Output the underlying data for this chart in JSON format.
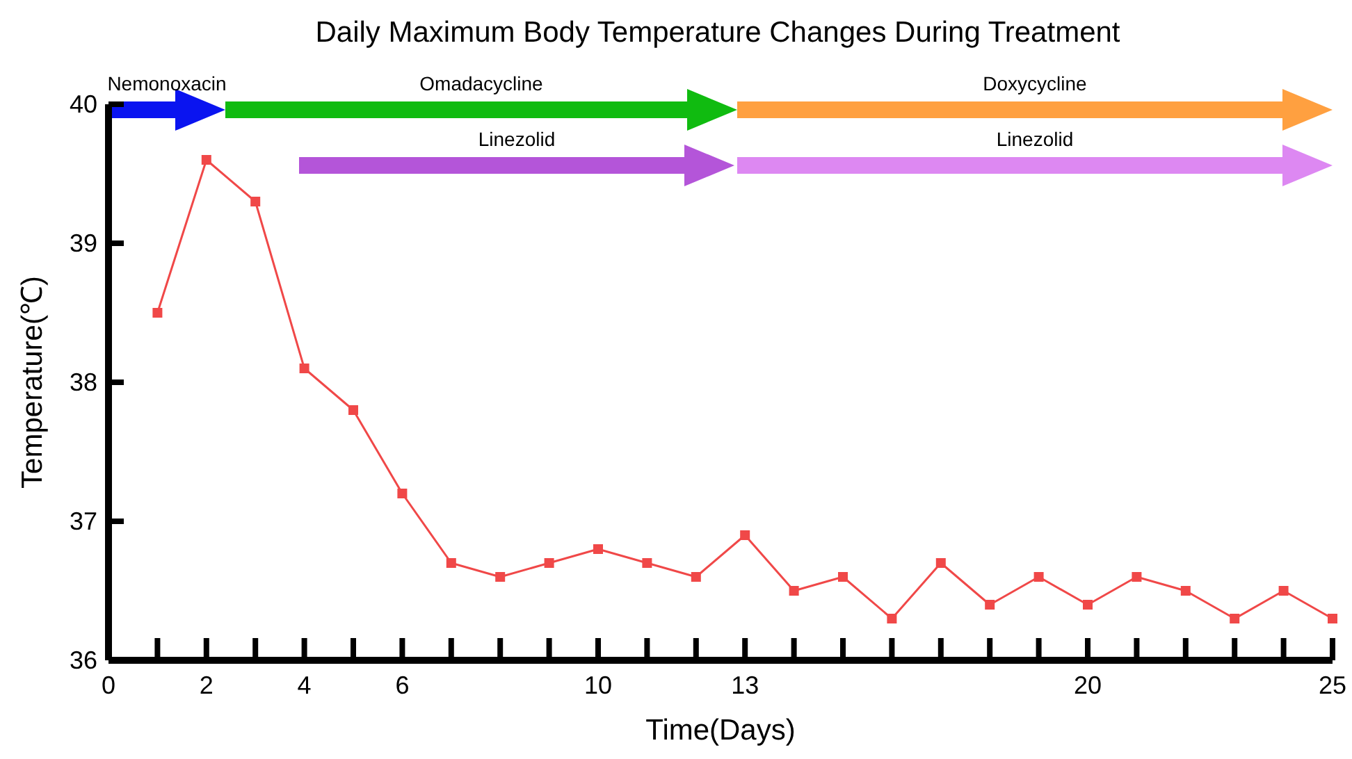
{
  "chart_data": {
    "type": "line",
    "title": "Daily Maximum  Body Temperature Changes During Treatment",
    "xlabel": "Time(Days)",
    "ylabel": "Temperature(℃)",
    "x": [
      1,
      2,
      3,
      4,
      5,
      6,
      7,
      8,
      9,
      10,
      11,
      12,
      13,
      14,
      15,
      16,
      17,
      18,
      19,
      20,
      21,
      22,
      23,
      24,
      25
    ],
    "series": [
      {
        "color": "#f04848",
        "values": [
          38.5,
          39.6,
          39.3,
          38.1,
          37.8,
          37.2,
          36.7,
          36.6,
          36.7,
          36.8,
          36.7,
          36.6,
          36.9,
          36.5,
          36.6,
          36.3,
          36.7,
          36.4,
          36.6,
          36.4,
          36.6,
          36.5,
          36.3,
          36.5,
          36.3
        ]
      }
    ],
    "marker": "square",
    "line_style": "solid",
    "grid": false,
    "xlim": [
      0,
      25
    ],
    "ylim": [
      36,
      40
    ],
    "xticks": [
      0,
      {
        "value": 1,
        "label": null
      },
      2,
      {
        "value": 3,
        "label": null
      },
      4,
      {
        "value": 5,
        "label": null
      },
      6,
      {
        "value": 7,
        "label": null
      },
      {
        "value": 8,
        "label": null
      },
      {
        "value": 9,
        "label": null
      },
      10,
      {
        "value": 11,
        "label": null
      },
      {
        "value": 12,
        "label": null
      },
      13,
      {
        "value": 14,
        "label": null
      },
      {
        "value": 15,
        "label": null
      },
      {
        "value": 16,
        "label": null
      },
      {
        "value": 17,
        "label": null
      },
      {
        "value": 18,
        "label": null
      },
      {
        "value": 19,
        "label": null
      },
      20,
      {
        "value": 21,
        "label": null
      },
      {
        "value": 22,
        "label": null
      },
      {
        "value": 23,
        "label": null
      },
      {
        "value": 24,
        "label": null
      },
      25
    ],
    "yticks": [
      36,
      37,
      38,
      39,
      40
    ],
    "annotations": [
      "Nemonoxacin",
      "Omadacycline",
      "Doxycycline",
      "Linezolid",
      "Linezolid"
    ]
  }
}
